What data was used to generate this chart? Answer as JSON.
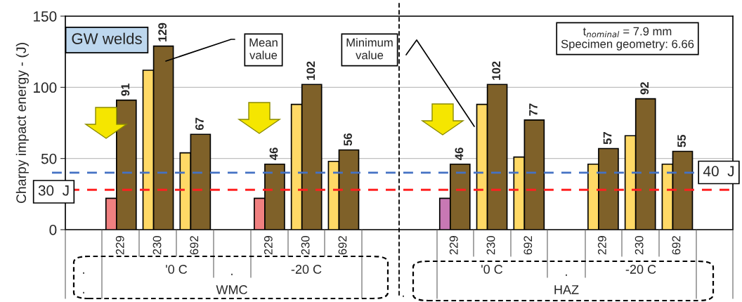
{
  "chart_data": {
    "type": "bar",
    "ylabel": "Charpy impact energy - (J)",
    "categories": [
      null,
      "229",
      "230",
      "692",
      null,
      "229",
      "230",
      "692",
      null,
      null,
      "229",
      "230",
      "692",
      null,
      "229",
      "230",
      "692",
      null
    ],
    "series": [
      {
        "name": "Minimum value",
        "colors": [
          "#ffd966",
          "#f08080",
          "#ffd966",
          "#ffd966",
          "#ffd966",
          "#f08080",
          "#ffd966",
          "#ffd966",
          "#ffd966",
          "#ffd966",
          "#c878b4",
          "#ffd966",
          "#ffd966",
          "#ffd966",
          "#ffd966",
          "#ffd966",
          "#ffd966",
          "#ffd966"
        ],
        "values": [
          null,
          22,
          112,
          54,
          null,
          22,
          88,
          48,
          null,
          null,
          22,
          88,
          51,
          null,
          46,
          66,
          46,
          null
        ]
      },
      {
        "name": "Mean value",
        "color": "#7f6129",
        "values": [
          null,
          91,
          129,
          67,
          null,
          46,
          102,
          56,
          null,
          null,
          46,
          102,
          77,
          null,
          57,
          92,
          55,
          null
        ],
        "value_labels": [
          null,
          "91",
          "129",
          "67",
          null,
          "46",
          "102",
          "56",
          null,
          null,
          "46",
          "102",
          "77",
          null,
          "57",
          "92",
          "55",
          null
        ]
      }
    ],
    "ylim": [
      0,
      150
    ],
    "yticks": [
      0,
      50,
      100,
      150
    ],
    "grid": "y",
    "legend": "top",
    "ref_lines": [
      {
        "axis": "y",
        "value": 40,
        "label": "40  J",
        "color": "#4472c4",
        "line_style": "dashed"
      },
      {
        "axis": "y",
        "value": 28,
        "label": "30  J",
        "color": "#ff2020",
        "line_style": "dashed"
      }
    ],
    "annotations": [
      "GW welds",
      "t$_{nominal}$ = 7.9 mm\nSpecimen geometry: 6.66",
      "'0 C",
      "-20 C",
      "WMC",
      "'0 C",
      "-20 C",
      "HAZ",
      ".",
      ".",
      ".",
      ".",
      "."
    ]
  }
}
